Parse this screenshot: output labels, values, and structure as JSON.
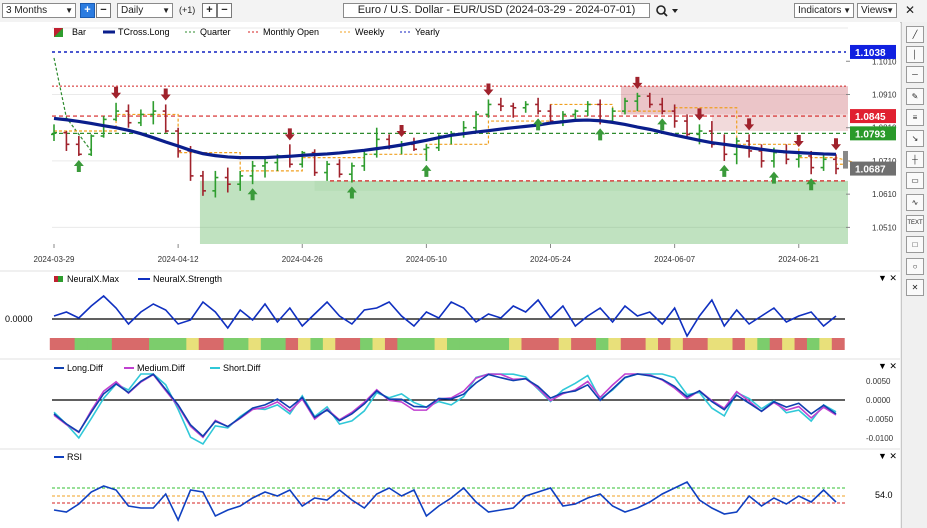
{
  "toolbar": {
    "range": "3 Months",
    "interval": "Daily",
    "offset": "(+1)",
    "plus": "+",
    "minus": "−",
    "title": "Euro / U.S. Dollar - EUR/USD (2024-03-29 - 2024-07-01)",
    "indicators_label": "Indicators",
    "views_label": "Views"
  },
  "colors": {
    "bull": "#2e9d2e",
    "bear": "#a0222c",
    "tcross": "#0a1e8c",
    "quarter": "#2e8b2e",
    "monthly_open": "#d42020",
    "weekly": "#f0a020",
    "yearly": "#1020c0",
    "strength": "#1030c0",
    "long_diff": "#1040b0",
    "medium_diff": "#c040d0",
    "short_diff": "#30c8d8",
    "rsi": "#1040c0"
  },
  "main_panel": {
    "legend": [
      "Bar",
      "TCross.Long",
      "Quarter",
      "Monthly Open",
      "Weekly",
      "Yearly"
    ],
    "price_labels": [
      {
        "value": "1.1038",
        "color": "#1020e0"
      },
      {
        "value": "1.0845",
        "color": "#e02030"
      },
      {
        "value": "1.0793",
        "color": "#2a9a2a"
      },
      {
        "value": "1.0687",
        "color": "#707070"
      }
    ],
    "y_ticks": [
      "1.1010",
      "1.0910",
      "1.0810",
      "1.0710",
      "1.0610",
      "1.0510"
    ],
    "x_ticks": [
      "2024-03-29",
      "2024-04-12",
      "2024-04-26",
      "2024-05-10",
      "2024-05-24",
      "2024-06-07",
      "2024-06-21"
    ]
  },
  "neural_panel": {
    "legend": [
      "NeuralX.Max",
      "NeuralX.Strength"
    ],
    "y_label": "0.0000"
  },
  "diff_panel": {
    "legend": [
      "Long.Diff",
      "Medium.Diff",
      "Short.Diff"
    ],
    "y_ticks": [
      "0.0050",
      "0.0000",
      "-0.0050",
      "-0.0100"
    ]
  },
  "rsi_panel": {
    "legend": [
      "RSI"
    ],
    "y_label": "54.0"
  },
  "chart_data": {
    "type": "candlestick",
    "instrument": "EUR/USD",
    "interval": "Daily",
    "date_range": [
      "2024-03-29",
      "2024-07-01"
    ],
    "x_ticks": [
      "2024-03-29",
      "2024-04-12",
      "2024-04-26",
      "2024-05-10",
      "2024-05-24",
      "2024-06-07",
      "2024-06-21"
    ],
    "y_range": [
      1.046,
      1.108
    ],
    "levels": {
      "yearly": 1.1038,
      "monthly_open": 1.0845,
      "quarter": 1.0793,
      "last": 1.0687
    },
    "bars": [
      [
        1.079,
        1.082,
        1.077,
        1.0795
      ],
      [
        1.0795,
        1.08,
        1.074,
        1.076
      ],
      [
        1.076,
        1.0785,
        1.0725,
        1.073
      ],
      [
        1.073,
        1.079,
        1.0725,
        1.0785
      ],
      [
        1.0785,
        1.0845,
        1.078,
        1.0835
      ],
      [
        1.0835,
        1.0885,
        1.083,
        1.086
      ],
      [
        1.086,
        1.088,
        1.081,
        1.0825
      ],
      [
        1.0825,
        1.0865,
        1.0815,
        1.085
      ],
      [
        1.085,
        1.089,
        1.082,
        1.086
      ],
      [
        1.086,
        1.088,
        1.0795,
        1.08
      ],
      [
        1.08,
        1.081,
        1.072,
        1.074
      ],
      [
        1.074,
        1.0755,
        1.065,
        1.0665
      ],
      [
        1.0665,
        1.068,
        1.0605,
        1.062
      ],
      [
        1.062,
        1.068,
        1.06,
        1.066
      ],
      [
        1.066,
        1.069,
        1.0615,
        1.064
      ],
      [
        1.064,
        1.068,
        1.062,
        1.0665
      ],
      [
        1.0665,
        1.071,
        1.064,
        1.0695
      ],
      [
        1.0695,
        1.072,
        1.066,
        1.0705
      ],
      [
        1.0705,
        1.073,
        1.068,
        1.0725
      ],
      [
        1.0725,
        1.076,
        1.069,
        1.07
      ],
      [
        1.07,
        1.074,
        1.069,
        1.0735
      ],
      [
        1.0735,
        1.0745,
        1.0665,
        1.0675
      ],
      [
        1.0675,
        1.071,
        1.065,
        1.07
      ],
      [
        1.07,
        1.0715,
        1.066,
        1.067
      ],
      [
        1.067,
        1.0705,
        1.0645,
        1.0695
      ],
      [
        1.0695,
        1.074,
        1.068,
        1.073
      ],
      [
        1.073,
        1.081,
        1.072,
        1.0775
      ],
      [
        1.0775,
        1.079,
        1.0745,
        1.0755
      ],
      [
        1.0755,
        1.077,
        1.073,
        1.076
      ],
      [
        1.076,
        1.078,
        1.074,
        1.0745
      ],
      [
        1.0745,
        1.076,
        1.071,
        1.075
      ],
      [
        1.075,
        1.079,
        1.074,
        1.0785
      ],
      [
        1.0785,
        1.08,
        1.076,
        1.079
      ],
      [
        1.079,
        1.083,
        1.078,
        1.081
      ],
      [
        1.081,
        1.086,
        1.08,
        1.085
      ],
      [
        1.085,
        1.0895,
        1.084,
        1.088
      ],
      [
        1.088,
        1.09,
        1.086,
        1.0875
      ],
      [
        1.0875,
        1.0885,
        1.084,
        1.087
      ],
      [
        1.087,
        1.089,
        1.0855,
        1.088
      ],
      [
        1.088,
        1.09,
        1.085,
        1.086
      ],
      [
        1.086,
        1.088,
        1.082,
        1.083
      ],
      [
        1.083,
        1.086,
        1.0815,
        1.085
      ],
      [
        1.085,
        1.0865,
        1.0835,
        1.086
      ],
      [
        1.086,
        1.089,
        1.0845,
        1.088
      ],
      [
        1.088,
        1.0895,
        1.082,
        1.083
      ],
      [
        1.083,
        1.087,
        1.0825,
        1.086
      ],
      [
        1.086,
        1.09,
        1.085,
        1.089
      ],
      [
        1.089,
        1.0915,
        1.086,
        1.0905
      ],
      [
        1.0905,
        1.0915,
        1.087,
        1.088
      ],
      [
        1.088,
        1.09,
        1.085,
        1.086
      ],
      [
        1.086,
        1.088,
        1.081,
        1.083
      ],
      [
        1.083,
        1.085,
        1.078,
        1.079
      ],
      [
        1.079,
        1.082,
        1.076,
        1.08
      ],
      [
        1.08,
        1.083,
        1.075,
        1.076
      ],
      [
        1.076,
        1.079,
        1.071,
        1.073
      ],
      [
        1.073,
        1.078,
        1.07,
        1.077
      ],
      [
        1.077,
        1.079,
        1.072,
        1.074
      ],
      [
        1.074,
        1.076,
        1.069,
        1.071
      ],
      [
        1.071,
        1.075,
        1.069,
        1.0735
      ],
      [
        1.0735,
        1.076,
        1.07,
        1.0715
      ],
      [
        1.0715,
        1.074,
        1.069,
        1.0725
      ],
      [
        1.0725,
        1.074,
        1.067,
        1.069
      ],
      [
        1.069,
        1.073,
        1.068,
        1.0715
      ],
      [
        1.0715,
        1.073,
        1.067,
        1.0687
      ]
    ],
    "series": [
      {
        "name": "TCross.Long",
        "values": [
          1.0838,
          1.0834,
          1.0829,
          1.0823,
          1.0816,
          1.081,
          1.0802,
          1.0792,
          1.078,
          1.0767,
          1.0755,
          1.0742,
          1.0732,
          1.0726,
          1.0722,
          1.072,
          1.072,
          1.072,
          1.0722,
          1.0724,
          1.0727,
          1.0729,
          1.0731,
          1.0734,
          1.0738,
          1.0742,
          1.0747,
          1.0752,
          1.0758,
          1.0765,
          1.0772,
          1.078,
          1.0787,
          1.0792,
          1.0797,
          1.0801,
          1.0806,
          1.081,
          1.0814,
          1.0818,
          1.0824,
          1.0828,
          1.0832,
          1.0833,
          1.0831,
          1.0826,
          1.082,
          1.0812,
          1.0805,
          1.0796,
          1.0788,
          1.078,
          1.0772,
          1.0765,
          1.076,
          1.0755,
          1.075,
          1.0745,
          1.074,
          1.0737,
          1.0735,
          1.0733,
          1.0731,
          1.073
        ]
      }
    ]
  }
}
